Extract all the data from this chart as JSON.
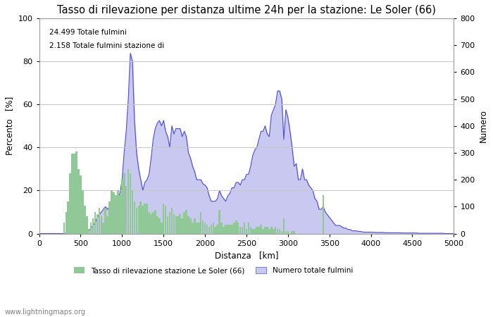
{
  "title": "Tasso di rilevazione per distanza ultime 24h per la stazione: Le Soler (66)",
  "xlabel": "Distanza   [km]",
  "ylabel_left": "Percento   [%]",
  "ylabel_right": "Numero",
  "annotation_line1": "24.499 Totale fulmini",
  "annotation_line2": "2.158 Totale fulmini stazione di",
  "legend_green": "Tasso di rilevazione stazione Le Soler (66)",
  "legend_blue": "Numero totale fulmini",
  "watermark": "www.lightningmaps.org",
  "xlim": [
    0,
    5000
  ],
  "ylim_left": [
    0,
    100
  ],
  "ylim_right": [
    0,
    800
  ],
  "xticks": [
    0,
    500,
    1000,
    1500,
    2000,
    2500,
    3000,
    3500,
    4000,
    4500,
    5000
  ],
  "yticks_left": [
    0,
    20,
    40,
    60,
    80,
    100
  ],
  "yticks_right": [
    0,
    100,
    200,
    300,
    400,
    500,
    600,
    700,
    800
  ],
  "bar_color": "#90c898",
  "fill_color": "#c8c8f0",
  "line_color": "#5050d0",
  "bg_color": "#ffffff",
  "grid_color": "#c8c8c8",
  "title_fontsize": 10.5,
  "label_fontsize": 8.5,
  "tick_fontsize": 8,
  "distances": [
    0,
    25,
    50,
    75,
    100,
    125,
    150,
    175,
    200,
    225,
    250,
    275,
    300,
    325,
    350,
    375,
    400,
    425,
    450,
    475,
    500,
    525,
    550,
    575,
    600,
    625,
    650,
    675,
    700,
    725,
    750,
    775,
    800,
    825,
    850,
    875,
    900,
    925,
    950,
    975,
    1000,
    1025,
    1050,
    1075,
    1100,
    1125,
    1150,
    1175,
    1200,
    1225,
    1250,
    1275,
    1300,
    1325,
    1350,
    1375,
    1400,
    1425,
    1450,
    1475,
    1500,
    1525,
    1550,
    1575,
    1600,
    1625,
    1650,
    1675,
    1700,
    1725,
    1750,
    1775,
    1800,
    1825,
    1850,
    1875,
    1900,
    1925,
    1950,
    1975,
    2000,
    2025,
    2050,
    2075,
    2100,
    2125,
    2150,
    2175,
    2200,
    2225,
    2250,
    2275,
    2300,
    2325,
    2350,
    2375,
    2400,
    2425,
    2450,
    2475,
    2500,
    2525,
    2550,
    2575,
    2600,
    2625,
    2650,
    2675,
    2700,
    2725,
    2750,
    2775,
    2800,
    2825,
    2850,
    2875,
    2900,
    2925,
    2950,
    2975,
    3000,
    3025,
    3050,
    3075,
    3100,
    3125,
    3150,
    3175,
    3200,
    3225,
    3250,
    3275,
    3300,
    3325,
    3350,
    3375,
    3400,
    3425,
    3450,
    3475,
    3500,
    3525,
    3550,
    3575,
    3600,
    3625,
    3650,
    3675,
    3700,
    3725,
    3750,
    3775,
    3800,
    3825,
    3850,
    3875,
    3900,
    3925,
    3950,
    3975,
    4000,
    4025,
    4050,
    4075,
    4100,
    4125,
    4150,
    4175,
    4200,
    4225,
    4250,
    4275,
    4300,
    4325,
    4350,
    4375,
    4400,
    4425,
    4450,
    4475,
    4500,
    4525,
    4550,
    4575,
    4600,
    4625,
    4650,
    4675,
    4700,
    4725,
    4750,
    4775,
    4800,
    4825,
    4850,
    4875,
    4900,
    4925,
    4950,
    4975,
    5000
  ],
  "green_bars": [
    0,
    0,
    0,
    0,
    0,
    0,
    0,
    0,
    0,
    0,
    0,
    0,
    5,
    10,
    15,
    28,
    37,
    37,
    38,
    30,
    27,
    20,
    13,
    8,
    2,
    5,
    7,
    10,
    9,
    12,
    8,
    5,
    12,
    8,
    15,
    20,
    19,
    18,
    20,
    18,
    25,
    28,
    22,
    30,
    28,
    20,
    15,
    12,
    13,
    15,
    13,
    14,
    14,
    10,
    9,
    10,
    11,
    8,
    7,
    5,
    14,
    13,
    8,
    10,
    12,
    9,
    8,
    8,
    9,
    7,
    10,
    11,
    8,
    7,
    5,
    7,
    5,
    5,
    10,
    6,
    5,
    4,
    3,
    4,
    5,
    3,
    4,
    11,
    5,
    3,
    4,
    4,
    4,
    4,
    5,
    6,
    5,
    3,
    3,
    5,
    2,
    5,
    3,
    2,
    2,
    3,
    3,
    4,
    2,
    3,
    3,
    2,
    3,
    2,
    3,
    2,
    2,
    1,
    7,
    1,
    1,
    0,
    1,
    1,
    0,
    0,
    0,
    0,
    0,
    0,
    0,
    0,
    0,
    0,
    0,
    0,
    0,
    18,
    0,
    0,
    0,
    0,
    0,
    0,
    0,
    0,
    0,
    0,
    0,
    0,
    0,
    0,
    0,
    0,
    0,
    0,
    0,
    0,
    0,
    0,
    0,
    0,
    0,
    0,
    0,
    0,
    0,
    0,
    0,
    0,
    0,
    0,
    0,
    0,
    0,
    0,
    0,
    0,
    0,
    0,
    0,
    0,
    0,
    0,
    0,
    0,
    0,
    0,
    0,
    0,
    0,
    0,
    0,
    0,
    0,
    0,
    0,
    0,
    0,
    0,
    0
  ],
  "blue_counts": [
    0,
    0,
    0,
    0,
    0,
    0,
    0,
    0,
    0,
    0,
    0,
    0,
    0,
    1,
    2,
    5,
    20,
    50,
    80,
    60,
    40,
    20,
    10,
    8,
    10,
    20,
    30,
    40,
    60,
    70,
    80,
    90,
    100,
    90,
    100,
    110,
    120,
    110,
    130,
    150,
    200,
    300,
    380,
    500,
    670,
    640,
    420,
    300,
    240,
    200,
    160,
    190,
    200,
    220,
    280,
    350,
    390,
    410,
    420,
    400,
    420,
    380,
    360,
    320,
    400,
    370,
    390,
    390,
    390,
    360,
    380,
    360,
    300,
    280,
    250,
    230,
    200,
    200,
    200,
    185,
    180,
    170,
    140,
    120,
    120,
    120,
    130,
    160,
    140,
    130,
    120,
    140,
    150,
    170,
    170,
    190,
    190,
    180,
    200,
    200,
    220,
    220,
    250,
    290,
    310,
    320,
    350,
    380,
    380,
    400,
    370,
    360,
    440,
    460,
    480,
    530,
    530,
    500,
    350,
    460,
    430,
    380,
    320,
    250,
    260,
    200,
    200,
    240,
    200,
    200,
    180,
    170,
    160,
    130,
    120,
    90,
    90,
    100,
    80,
    70,
    60,
    50,
    40,
    30,
    30,
    30,
    25,
    20,
    20,
    15,
    15,
    10,
    10,
    10,
    8,
    8,
    6,
    5,
    5,
    5,
    5,
    5,
    4,
    4,
    4,
    4,
    4,
    3,
    3,
    3,
    3,
    3,
    3,
    3,
    3,
    2,
    2,
    2,
    2,
    2,
    2,
    2,
    2,
    1,
    1,
    1,
    1,
    1,
    1,
    1,
    1,
    1,
    1,
    1,
    1,
    1,
    0,
    0,
    0,
    0,
    0
  ]
}
